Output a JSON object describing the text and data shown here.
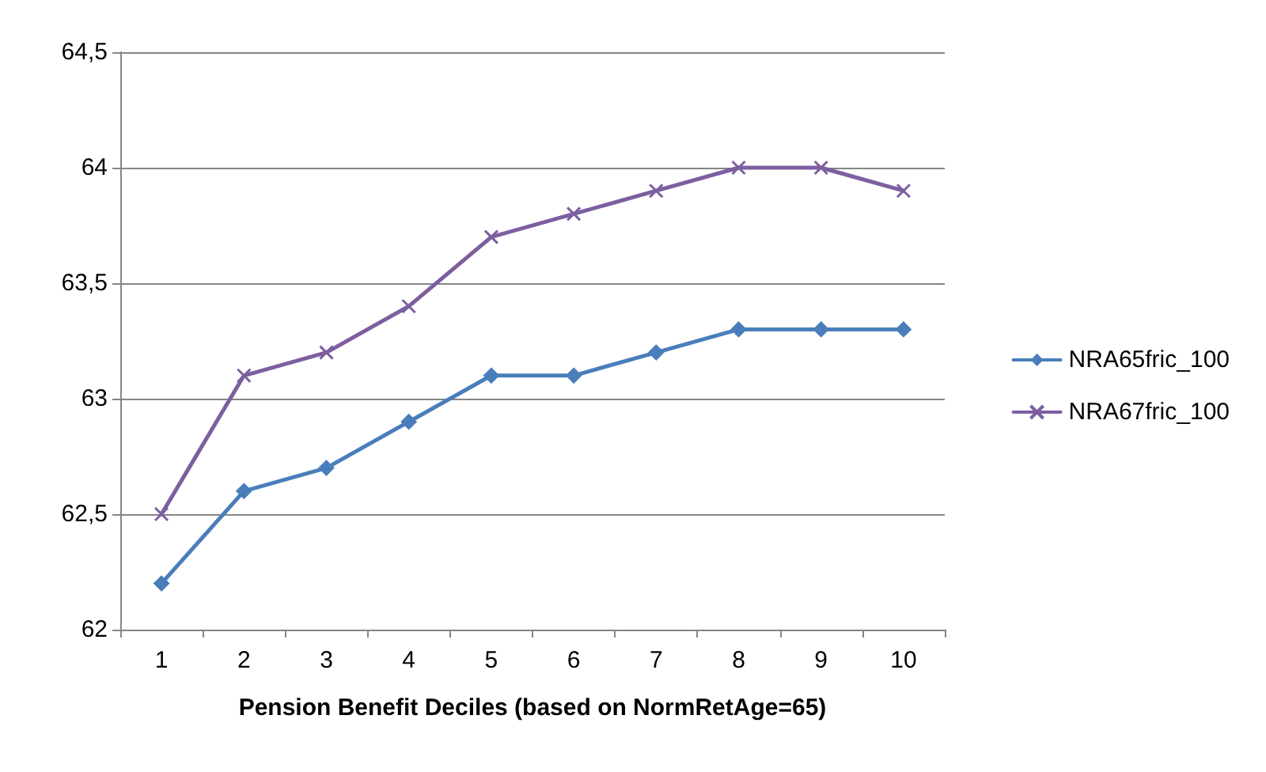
{
  "chart_data": {
    "type": "line",
    "xlabel": "Pension Benefit Deciles (based on NormRetAge=65)",
    "categories": [
      "1",
      "2",
      "3",
      "4",
      "5",
      "6",
      "7",
      "8",
      "9",
      "10"
    ],
    "series": [
      {
        "name": "NRA65fric_100",
        "color": "#4a7ebb",
        "marker": "diamond",
        "values": [
          62.2,
          62.6,
          62.7,
          62.9,
          63.1,
          63.1,
          63.2,
          63.3,
          63.3,
          63.3
        ]
      },
      {
        "name": "NRA67fric_100",
        "color": "#7d5fa0",
        "marker": "cross",
        "values": [
          62.5,
          63.1,
          63.2,
          63.4,
          63.7,
          63.8,
          63.9,
          64.0,
          64.0,
          63.9
        ]
      }
    ],
    "ylim": [
      62,
      64.5
    ],
    "yticks": [
      62,
      {
        "value": 62.5,
        "label": "62,5"
      },
      63,
      {
        "value": 63.5,
        "label": "63,5"
      },
      64,
      {
        "value": 64.5,
        "label": "64,5"
      }
    ],
    "grid": "y",
    "legend": "right",
    "line_style": "solid"
  }
}
